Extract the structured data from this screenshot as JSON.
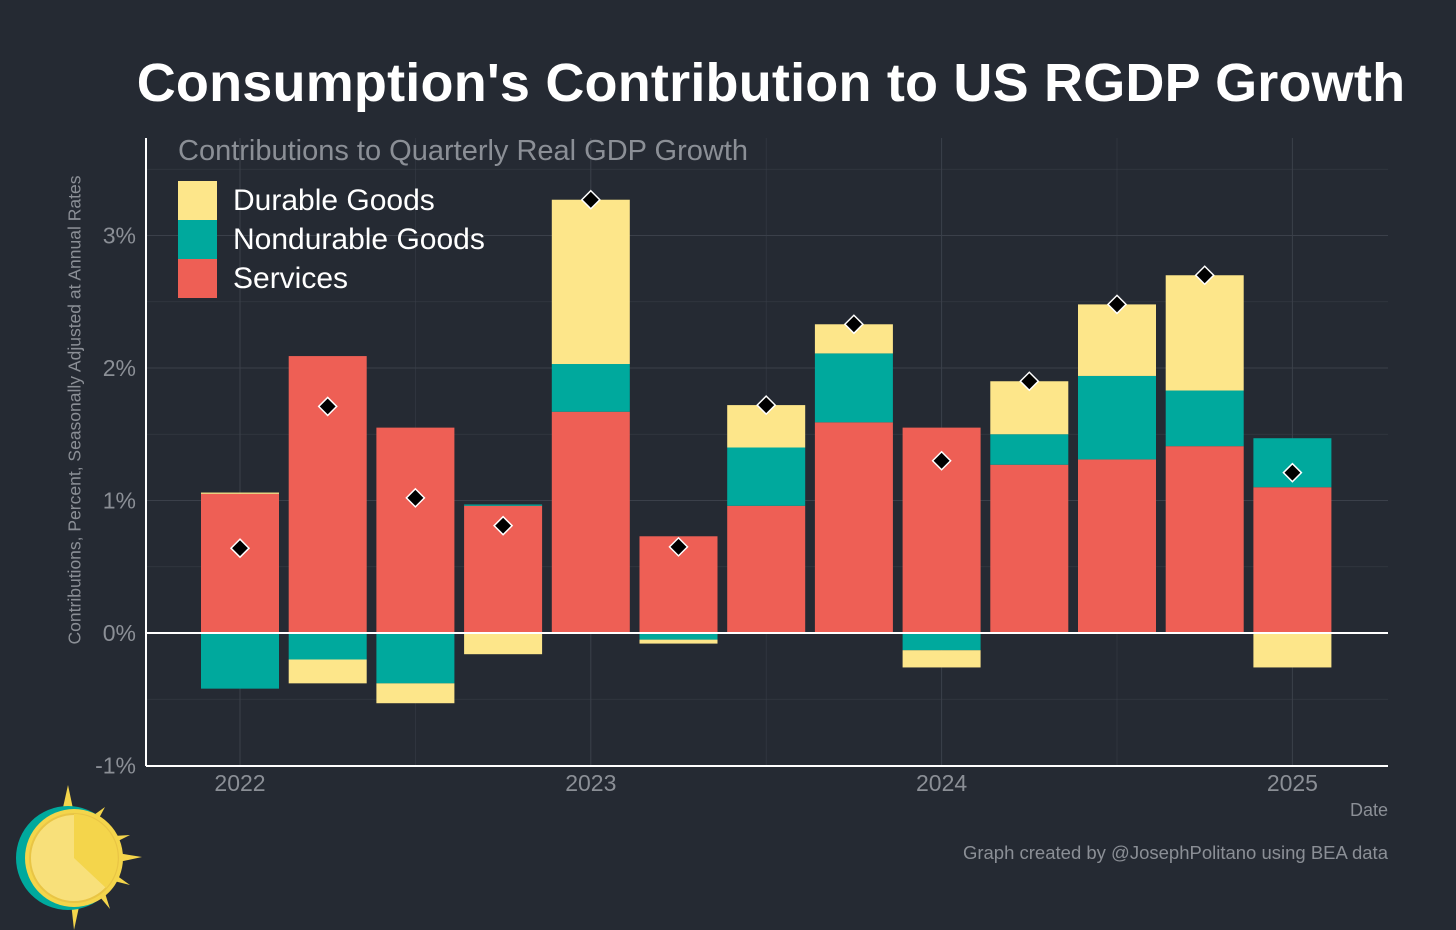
{
  "title": "Consumption's Contribution to US RGDP Growth",
  "subtitle": "Contributions to Quarterly Real GDP Growth",
  "ylabel": "Contributions, Percent, Seasonally Adjusted at Annual Rates",
  "xlabel": "Date",
  "credit": "Graph created by @JosephPolitano using BEA data",
  "colors": {
    "background": "#252a33",
    "durable": "#fde68a",
    "nondurable": "#00a99d",
    "services": "#ee5f55",
    "grid": "#3b404a",
    "axis": "#ffffff",
    "tick_text": "#8b8f96"
  },
  "chart_data": {
    "type": "bar",
    "stacked": true,
    "title": "Consumption's Contribution to US RGDP Growth",
    "subtitle": "Contributions to Quarterly Real GDP Growth",
    "xlabel": "Date",
    "ylabel": "Contributions, Percent, Seasonally Adjusted at Annual Rates",
    "ylim": [
      -1,
      3.8
    ],
    "yticks": [
      -1,
      0,
      1,
      2,
      3
    ],
    "ytick_labels": [
      "-1%",
      "0%",
      "1%",
      "2%",
      "3%"
    ],
    "xtick_labels": [
      "2022",
      "2023",
      "2024",
      "2025"
    ],
    "xtick_positions": [
      0,
      4,
      8,
      12
    ],
    "categories": [
      "2022 Q1",
      "2022 Q2",
      "2022 Q3",
      "2022 Q4",
      "2023 Q1",
      "2023 Q2",
      "2023 Q3",
      "2023 Q4",
      "2024 Q1",
      "2024 Q2",
      "2024 Q3",
      "2024 Q4",
      "2025 Q1"
    ],
    "grid": true,
    "legend": "top-left",
    "series": [
      {
        "name": "Services",
        "color": "#ee5f55",
        "values": [
          1.05,
          2.09,
          1.55,
          0.96,
          1.67,
          0.73,
          0.96,
          1.59,
          1.55,
          1.27,
          1.31,
          1.41,
          1.1
        ]
      },
      {
        "name": "Nondurable Goods",
        "color": "#00a99d",
        "values": [
          -0.42,
          -0.2,
          -0.38,
          0.01,
          0.36,
          -0.05,
          0.44,
          0.52,
          -0.13,
          0.23,
          0.63,
          0.42,
          0.37
        ]
      },
      {
        "name": "Durable Goods",
        "color": "#fde68a",
        "values": [
          0.01,
          -0.18,
          -0.15,
          -0.16,
          1.24,
          -0.03,
          0.32,
          0.22,
          -0.13,
          0.4,
          0.54,
          0.87,
          -0.26
        ]
      }
    ],
    "totals": [
      0.64,
      1.71,
      1.02,
      0.81,
      3.27,
      0.65,
      1.72,
      2.33,
      1.3,
      1.9,
      2.48,
      2.7,
      1.21
    ],
    "legend_order": [
      "Durable Goods",
      "Nondurable Goods",
      "Services"
    ]
  }
}
